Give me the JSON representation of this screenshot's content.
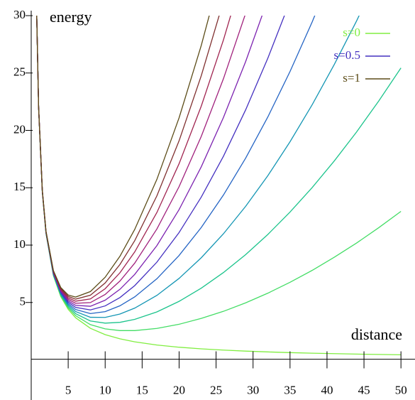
{
  "chart_data": {
    "type": "line",
    "x_label": "distance",
    "y_label": "energy",
    "x": [
      0.7,
      1,
      1.5,
      2,
      3,
      4,
      5,
      6,
      8,
      10,
      12,
      14,
      17,
      20,
      23,
      26,
      29,
      32,
      35,
      38,
      41,
      44,
      47,
      50
    ],
    "series": [
      {
        "name": "s=0",
        "color": "#80ee40",
        "values": [
          31.43,
          22,
          14.67,
          11,
          7.33,
          5.5,
          4.4,
          3.67,
          2.75,
          2.2,
          1.83,
          1.57,
          1.29,
          1.1,
          0.96,
          0.85,
          0.76,
          0.69,
          0.63,
          0.58,
          0.54,
          0.5,
          0.47,
          0.44
        ]
      },
      {
        "color": "#44dd66",
        "values": [
          31.43,
          22.01,
          14.68,
          11.02,
          7.38,
          5.58,
          4.53,
          3.85,
          3.07,
          2.7,
          2.55,
          2.55,
          2.74,
          3.1,
          3.61,
          4.23,
          4.97,
          5.81,
          6.76,
          7.8,
          8.95,
          10.18,
          11.52,
          12.94
        ]
      },
      {
        "color": "#1cc48c",
        "values": [
          31.43,
          22.01,
          14.69,
          11.04,
          7.42,
          5.66,
          4.65,
          4.03,
          3.39,
          3.2,
          3.27,
          3.53,
          4.18,
          5.1,
          6.25,
          7.61,
          9.17,
          10.93,
          12.88,
          15.02,
          17.35,
          19.86,
          22.56,
          25.44
        ]
      },
      {
        "color": "#1496b4",
        "values": [
          31.44,
          22.02,
          14.7,
          11.06,
          7.47,
          5.74,
          4.78,
          4.21,
          3.71,
          3.7,
          3.99,
          4.51,
          5.62,
          7.1,
          8.9,
          10.99,
          13.38,
          16.05,
          19.01,
          22.24,
          25.76,
          29.54,
          33.6,
          null
        ]
      },
      {
        "color": "#2464c4",
        "values": [
          31.44,
          22.02,
          14.71,
          11.08,
          7.51,
          5.82,
          4.9,
          4.39,
          4.03,
          4.2,
          4.71,
          5.49,
          7.07,
          9.1,
          11.54,
          14.37,
          17.58,
          21.17,
          25.13,
          29.46,
          34.16,
          null,
          null,
          null
        ]
      },
      {
        "name": "s=0.5",
        "color": "#4430c0",
        "values": [
          31.44,
          22.03,
          14.73,
          11.1,
          7.56,
          5.9,
          5.03,
          4.57,
          4.35,
          4.7,
          5.43,
          6.47,
          8.52,
          11.1,
          14.19,
          17.75,
          21.79,
          26.29,
          31.26,
          null,
          null,
          null,
          null,
          null
        ]
      },
      {
        "color": "#7c22b0",
        "values": [
          31.44,
          22.03,
          14.74,
          11.12,
          7.6,
          5.98,
          5.15,
          4.75,
          4.67,
          5.2,
          6.15,
          7.45,
          9.96,
          13.1,
          16.83,
          21.13,
          26,
          31.41,
          null,
          null,
          null,
          null,
          null,
          null
        ]
      },
      {
        "color": "#a0207c",
        "values": [
          31.45,
          22.04,
          14.75,
          11.14,
          7.65,
          6.06,
          5.28,
          4.93,
          4.99,
          5.7,
          6.87,
          8.43,
          11.41,
          15.1,
          19.48,
          24.51,
          30.2,
          null,
          null,
          null,
          null,
          null,
          null,
          null
        ]
      },
      {
        "color": "#a02450",
        "values": [
          31.45,
          22.04,
          14.76,
          11.16,
          7.69,
          6.14,
          5.4,
          5.11,
          5.31,
          6.2,
          7.59,
          9.41,
          12.85,
          17.1,
          22.12,
          27.89,
          34.4,
          null,
          null,
          null,
          null,
          null,
          null,
          null
        ]
      },
      {
        "color": "#803030",
        "values": [
          31.45,
          22.05,
          14.77,
          11.18,
          7.74,
          6.22,
          5.53,
          5.29,
          5.63,
          6.7,
          8.31,
          10.39,
          14.3,
          19.1,
          24.77,
          31.27,
          null,
          null,
          null,
          null,
          null,
          null,
          null,
          null
        ]
      },
      {
        "name": "s=1",
        "color": "#5c4c18",
        "values": [
          31.45,
          22.05,
          14.78,
          11.2,
          7.78,
          6.3,
          5.65,
          5.47,
          5.95,
          7.2,
          9.03,
          11.37,
          15.74,
          21.1,
          27.41,
          34.65,
          null,
          null,
          null,
          null,
          null,
          null,
          null,
          null
        ]
      }
    ],
    "xlim": [
      0,
      51.9
    ],
    "ylim": [
      -3.5,
      30
    ],
    "xticks": [
      5,
      10,
      15,
      20,
      25,
      30,
      35,
      40,
      45,
      50
    ],
    "yticks": [
      5,
      10,
      15,
      20,
      25,
      30
    ]
  }
}
